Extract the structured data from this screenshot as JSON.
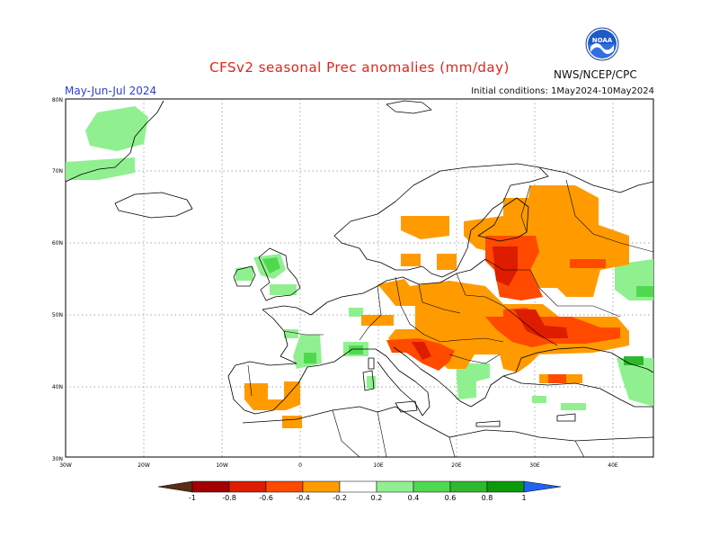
{
  "header": {
    "title": "CFSv2 seasonal Prec anomalies (mm/day)",
    "period": "May-Jun-Jul 2024",
    "initial_conditions": "Initial conditions: 1May2024-10May2024",
    "agency": "NWS/NCEP/CPC",
    "logo_text": "NOAA"
  },
  "map": {
    "lat_labels": [
      "80N",
      "70N",
      "60N",
      "50N",
      "40N",
      "30N"
    ],
    "lon_labels": [
      "30W",
      "20W",
      "10W",
      "0",
      "10E",
      "20E",
      "30E",
      "40E"
    ]
  },
  "legend": {
    "tick_labels": [
      "-1",
      "-0.8",
      "-0.6",
      "-0.4",
      "-0.2",
      "0.2",
      "0.4",
      "0.6",
      "0.8",
      "1"
    ],
    "colors": [
      "#5a2c17",
      "#a50000",
      "#dd1c00",
      "#ff4a00",
      "#ff9b00",
      "#ffffff",
      "#90f090",
      "#4fd94f",
      "#2eb82e",
      "#0a9a0a",
      "#1e64f0"
    ]
  },
  "colors": {
    "dry_light": "#ff9b00",
    "dry_strong": "#ff4a00",
    "dry_very_strong": "#dd1c00",
    "wet_light": "#90f090",
    "wet_medium": "#4fd94f",
    "wet_strong": "#2eb82e"
  }
}
